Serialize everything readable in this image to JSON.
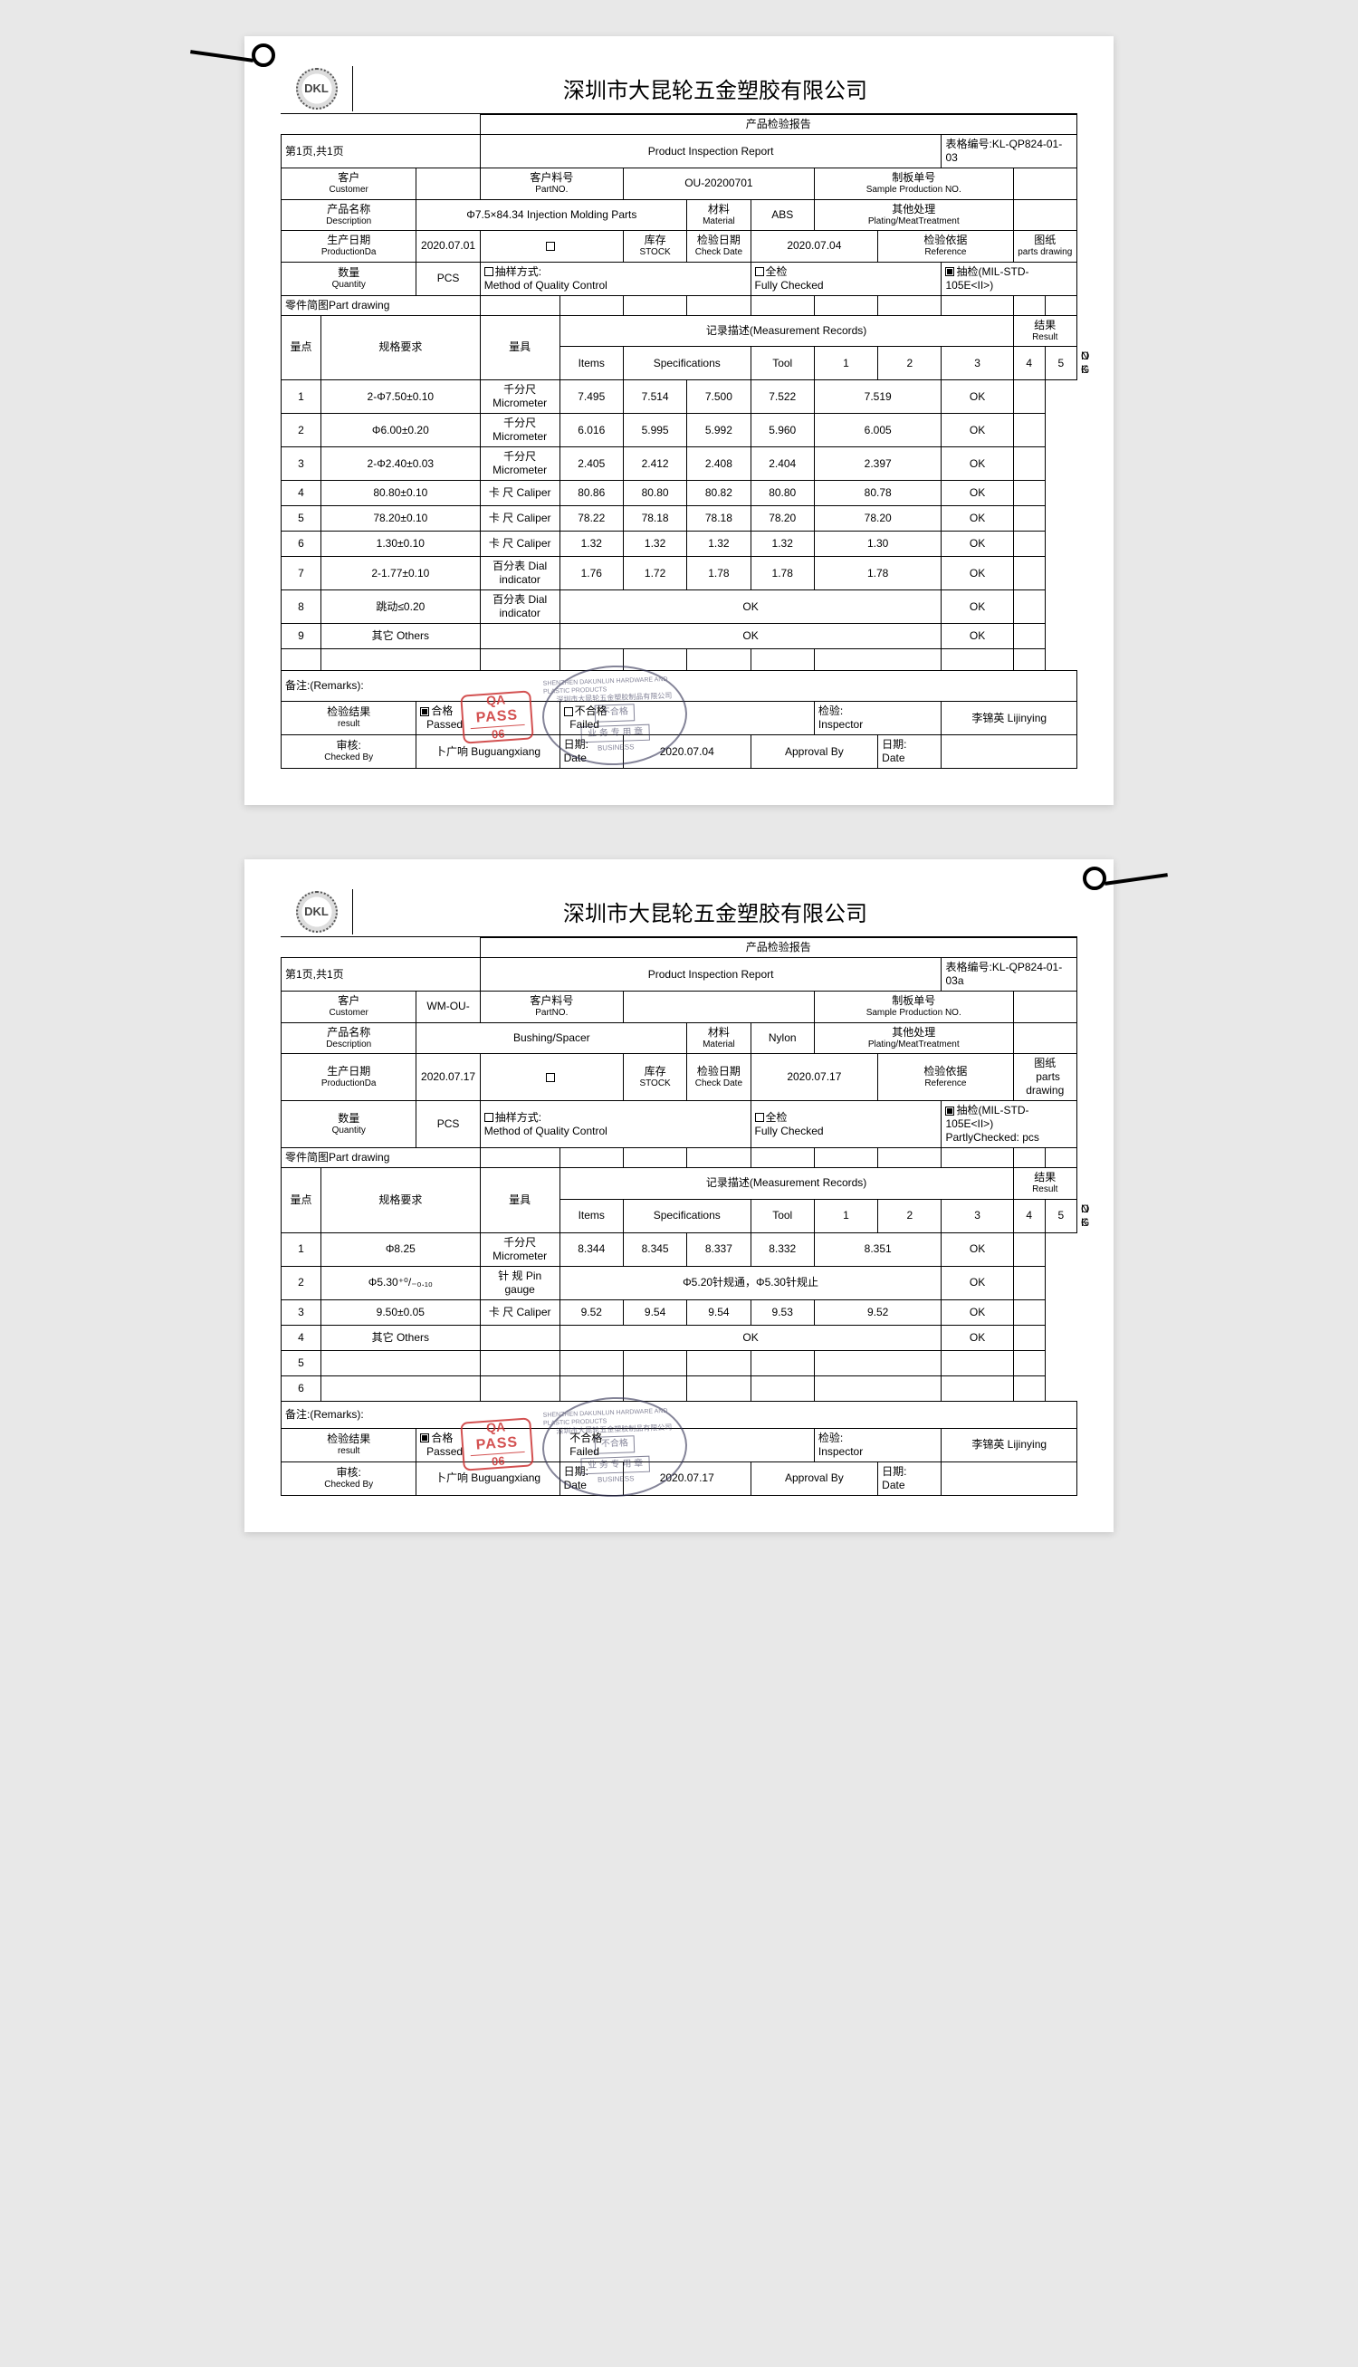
{
  "company_name": "深圳市大昆轮五金塑胶有限公司",
  "logo_text": "DKL",
  "report_title_cn": "产品检验报告",
  "report_title_en": "Product Inspection Report",
  "labels": {
    "page_info": "第1页,共1页",
    "form_number_label": "表格编号:",
    "customer": {
      "cn": "客户",
      "en": "Customer"
    },
    "part_no": {
      "cn": "客户料号",
      "en": "PartNO."
    },
    "sample_no": {
      "cn": "制板单号",
      "en": "Sample Production NO."
    },
    "description": {
      "cn": "产品名称",
      "en": "Description"
    },
    "material": {
      "cn": "材料",
      "en": "Material"
    },
    "other_treatment": {
      "cn": "其他处理",
      "en": "Plating/MeatTreatment"
    },
    "production_date": {
      "cn": "生产日期",
      "en": "ProductionDa"
    },
    "stock": {
      "cn": "库存",
      "en": "STOCK"
    },
    "check_date": {
      "cn": "检验日期",
      "en": "Check Date"
    },
    "reference": {
      "cn": "检验依据",
      "en": "Reference"
    },
    "drawing": {
      "cn": "图纸",
      "en": "parts drawing"
    },
    "quantity": {
      "cn": "数量",
      "en": "Quantity"
    },
    "qc_method": {
      "cn": "抽样方式:",
      "en": "Method of Quality Control"
    },
    "fully_checked": {
      "cn": "全检",
      "en": "Fully Checked"
    },
    "partly_checked_prefix": "抽检(MIL-STD-105E<II>)",
    "partly_checked_suffix": "PartlyChecked:  pcs",
    "part_drawing": "零件简图Part drawing",
    "items": {
      "cn": "量点",
      "col": "Items"
    },
    "specs": {
      "cn": "规格要求",
      "en": "Specifications"
    },
    "tool": {
      "cn": "量具",
      "en": "Tool"
    },
    "records": "记录描述(Measurement Records)",
    "result": {
      "cn": "结果",
      "en": "Result"
    },
    "ok": "OK",
    "ng": "NG",
    "remarks": "备注:(Remarks):",
    "test_result": {
      "cn": "检验结果",
      "en": "result"
    },
    "passed": {
      "cn": "合格",
      "en": "Passed"
    },
    "failed": {
      "cn": "不合格",
      "en": "Failed"
    },
    "inspector": {
      "cn": "检验:",
      "en": "Inspector"
    },
    "checked_by": {
      "cn": "审核:",
      "en": "Checked By"
    },
    "date": {
      "cn": "日期:",
      "en": "Date"
    },
    "approval_by": "Approval By",
    "others": "其它        Others",
    "pcs": "PCS"
  },
  "tools": {
    "micrometer": "千分尺\nMicrometer",
    "caliper": "卡 尺 Caliper",
    "dial": "百分表   Dial indicator",
    "pin_gauge": "针  规   Pin gauge"
  },
  "qa_stamp": {
    "top": "QA",
    "mid": "PASS",
    "bot_1": "06"
  },
  "seal_stamp": {
    "arc_top": "SHENZHEN DAKUNLUN HARDWARE AND PLASTIC PRODUCTS",
    "center_cn": "深圳市大昆轮五金塑胶制品有限公司",
    "box1": "不合格",
    "box2": "业 务 专 用 章",
    "arc_bot": "BUSINESS"
  },
  "report1": {
    "form_number": "KL-QP824-01-03",
    "customer": "",
    "part_no": "OU-20200701",
    "sample_no": "",
    "description": "Φ7.5×84.34 Injection Molding Parts",
    "material": "ABS",
    "other_treatment": "",
    "production_date": "2020.07.01",
    "stock": "",
    "check_date": "2020.07.04",
    "quantity": "",
    "checked_by_name": "卜广响 Buguangxiang",
    "inspector_name": "李锦英 Lijinying",
    "footer_date": "2020.07.04",
    "rows": [
      {
        "n": "1",
        "spec": "2-Φ7.50±0.10",
        "tool": "micrometer",
        "m": [
          "7.495",
          "7.514",
          "7.500",
          "7.522",
          "7.519"
        ],
        "ok": "OK",
        "ng": ""
      },
      {
        "n": "2",
        "spec": "Φ6.00±0.20",
        "tool": "micrometer",
        "m": [
          "6.016",
          "5.995",
          "5.992",
          "5.960",
          "6.005"
        ],
        "ok": "OK",
        "ng": ""
      },
      {
        "n": "3",
        "spec": "2-Φ2.40±0.03",
        "tool": "micrometer",
        "m": [
          "2.405",
          "2.412",
          "2.408",
          "2.404",
          "2.397"
        ],
        "ok": "OK",
        "ng": ""
      },
      {
        "n": "4",
        "spec": "80.80±0.10",
        "tool": "caliper",
        "m": [
          "80.86",
          "80.80",
          "80.82",
          "80.80",
          "80.78"
        ],
        "ok": "OK",
        "ng": ""
      },
      {
        "n": "5",
        "spec": "78.20±0.10",
        "tool": "caliper",
        "m": [
          "78.22",
          "78.18",
          "78.18",
          "78.20",
          "78.20"
        ],
        "ok": "OK",
        "ng": ""
      },
      {
        "n": "6",
        "spec": "1.30±0.10",
        "tool": "caliper",
        "m": [
          "1.32",
          "1.32",
          "1.32",
          "1.32",
          "1.30"
        ],
        "ok": "OK",
        "ng": ""
      },
      {
        "n": "7",
        "spec": "2-1.77±0.10",
        "tool": "dial",
        "m": [
          "1.76",
          "1.72",
          "1.78",
          "1.78",
          "1.78"
        ],
        "ok": "OK",
        "ng": ""
      },
      {
        "n": "8",
        "spec": "跳动≤0.20",
        "tool": "dial",
        "merged": "OK",
        "ok": "OK",
        "ng": ""
      },
      {
        "n": "9",
        "spec": "其它        Others",
        "tool": "",
        "merged": "OK",
        "ok": "OK",
        "ng": ""
      }
    ]
  },
  "report2": {
    "form_number": "KL-QP824-01-03a",
    "customer": "WM-OU-",
    "part_no": "",
    "sample_no": "",
    "description": "Bushing/Spacer",
    "material": "Nylon",
    "other_treatment": "",
    "production_date": "2020.07.17",
    "stock": "",
    "check_date": "2020.07.17",
    "quantity": "",
    "checked_by_name": "卜广响 Buguangxiang",
    "inspector_name": "李锦英 Lijinying",
    "footer_date": "2020.07.17",
    "rows": [
      {
        "n": "1",
        "spec": "Φ8.25",
        "tool": "micrometer",
        "m": [
          "8.344",
          "8.345",
          "8.337",
          "8.332",
          "8.351"
        ],
        "ok": "OK",
        "ng": ""
      },
      {
        "n": "2",
        "spec": "Φ5.30⁺⁰/₋₀.₁₀",
        "tool": "pin_gauge",
        "merged": "Φ5.20针规通，Φ5.30针规止",
        "ok": "OK",
        "ng": ""
      },
      {
        "n": "3",
        "spec": "9.50±0.05",
        "tool": "caliper",
        "m": [
          "9.52",
          "9.54",
          "9.54",
          "9.53",
          "9.52"
        ],
        "ok": "OK",
        "ng": ""
      },
      {
        "n": "4",
        "spec": "其它        Others",
        "tool": "",
        "merged": "OK",
        "ok": "OK",
        "ng": ""
      },
      {
        "n": "5",
        "spec": "",
        "tool": "",
        "m": [
          "",
          "",
          "",
          "",
          ""
        ],
        "ok": "",
        "ng": ""
      },
      {
        "n": "6",
        "spec": "",
        "tool": "",
        "m": [
          "",
          "",
          "",
          "",
          ""
        ],
        "ok": "",
        "ng": ""
      }
    ]
  }
}
